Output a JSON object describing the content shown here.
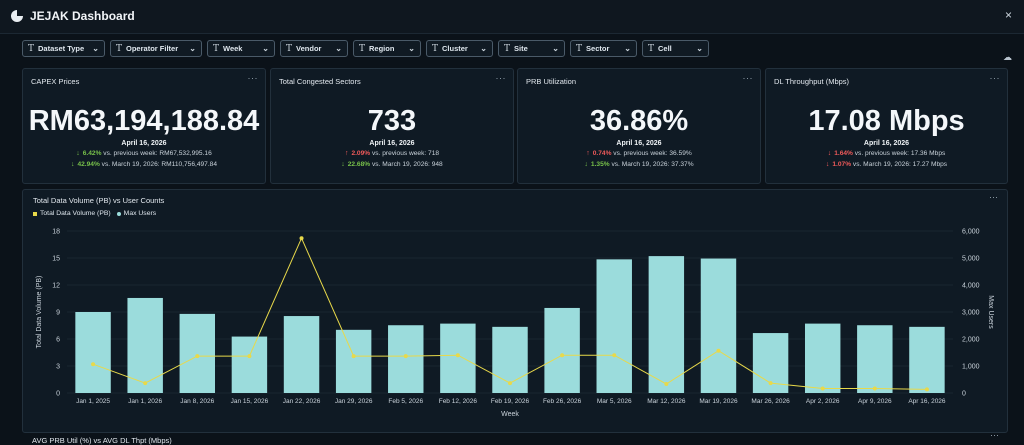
{
  "app": {
    "title": "JEJAK Dashboard",
    "close_label": "×"
  },
  "filters": [
    {
      "label": "Dataset Type"
    },
    {
      "label": "Operator Filter"
    },
    {
      "label": "Week"
    },
    {
      "label": "Vendor"
    },
    {
      "label": "Region"
    },
    {
      "label": "Cluster"
    },
    {
      "label": "Site"
    },
    {
      "label": "Sector"
    },
    {
      "label": "Cell"
    }
  ],
  "filter_glyph": "T",
  "menu_dots": "···",
  "kpis": [
    {
      "title": "CAPEX Prices",
      "value": "RM63,194,188.84",
      "date": "April 16, 2026",
      "cmp1": {
        "direction": "down",
        "pct": "6.42%",
        "text": " vs. previous week: RM67,532,995.16"
      },
      "cmp2": {
        "direction": "down",
        "pct": "42.94%",
        "text": " vs. March 19, 2026: RM110,756,497.84"
      }
    },
    {
      "title": "Total Congested Sectors",
      "value": "733",
      "date": "April 16, 2026",
      "cmp1": {
        "direction": "up",
        "pct": "2.09%",
        "text": " vs. previous week: 718"
      },
      "cmp2": {
        "direction": "down",
        "pct": "22.68%",
        "text": " vs. March 19, 2026: 948"
      }
    },
    {
      "title": "PRB Utilization",
      "value": "36.86%",
      "date": "April 16, 2026",
      "cmp1": {
        "direction": "up",
        "pct": "0.74%",
        "text": " vs. previous week: 36.59%"
      },
      "cmp2": {
        "direction": "down",
        "pct": "1.35%",
        "text": " vs. March 19, 2026: 37.37%"
      }
    },
    {
      "title": "DL Throughput (Mbps)",
      "value": "17.08 Mbps",
      "date": "April 16, 2026",
      "cmp1": {
        "direction": "down",
        "pct": "1.64%",
        "text": " vs. previous week: 17.36 Mbps"
      },
      "cmp2": {
        "direction": "down",
        "pct": "1.07%",
        "text": " vs. March 19, 2026: 17.27 Mbps"
      }
    }
  ],
  "chart_panel": {
    "title": "Total Data Volume (PB) vs User Counts",
    "legend": [
      {
        "name": "Total Data Volume (PB)",
        "color": "#e8d94a"
      },
      {
        "name": "Max Users",
        "color": "#9bdcdc"
      }
    ]
  },
  "chart_data": {
    "type": "bar",
    "title": "Total Data Volume (PB) vs User Counts",
    "xlabel": "Week",
    "ylabel": "Total Data Volume (PB)",
    "y2label": "Max Users",
    "categories": [
      "Jan 1, 2025",
      "Jan 1, 2026",
      "Jan 8, 2026",
      "Jan 15, 2026",
      "Jan 22, 2026",
      "Jan 29, 2026",
      "Feb 5, 2026",
      "Feb 12, 2026",
      "Feb 19, 2026",
      "Feb 26, 2026",
      "Mar 5, 2026",
      "Mar 12, 2026",
      "Mar 19, 2026",
      "Mar 26, 2026",
      "Apr 2, 2026",
      "Apr 9, 2026",
      "Apr 16, 2026"
    ],
    "ylim": [
      0,
      18
    ],
    "yticks": [
      0,
      3,
      6,
      9,
      12,
      15,
      18
    ],
    "y2lim": [
      0,
      6000
    ],
    "y2ticks": [
      "0",
      "1,000",
      "2,000",
      "3,000",
      "4,000",
      "5,000",
      "6,000"
    ],
    "series": [
      {
        "name": "Max Users",
        "type": "bar",
        "axis": "right",
        "color": "#9bdcdc",
        "values": [
          3000,
          3520,
          2930,
          2090,
          2850,
          2340,
          2510,
          2570,
          2450,
          3150,
          4950,
          5070,
          4980,
          2220,
          2570,
          2510,
          2450
        ]
      },
      {
        "name": "Total Data Volume (PB)",
        "type": "line",
        "axis": "left",
        "color": "#e8d94a",
        "values": [
          3.2,
          1.1,
          4.1,
          4.1,
          17.2,
          4.1,
          4.1,
          4.2,
          1.1,
          4.2,
          4.2,
          1.0,
          4.7,
          1.1,
          0.5,
          0.5,
          0.4
        ]
      }
    ],
    "grid": true,
    "legend_position": "top-left"
  },
  "bottom_panel": {
    "title": "AVG PRB Util (%) vs AVG DL Thpt (Mbps)"
  }
}
